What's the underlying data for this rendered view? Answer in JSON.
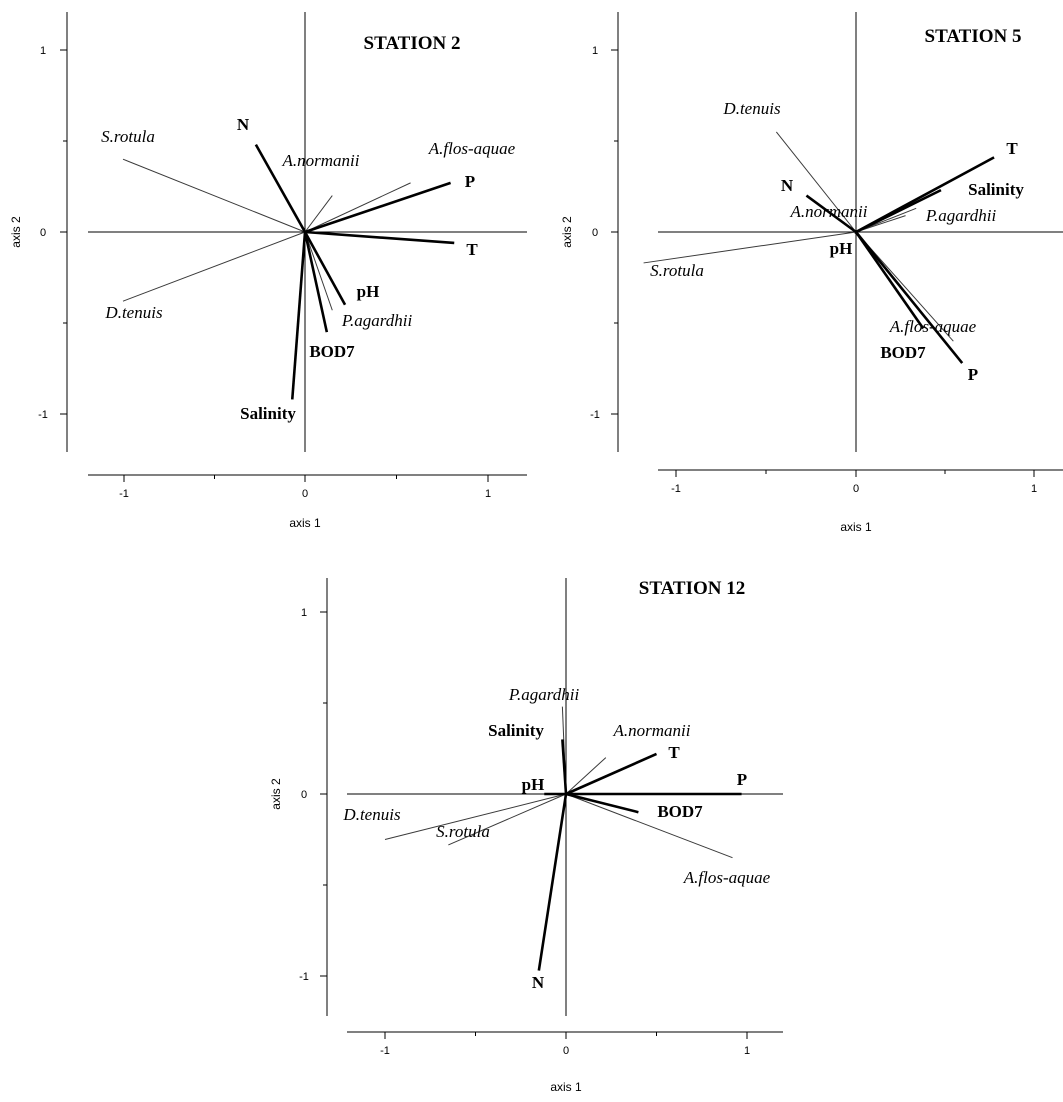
{
  "chart_data": [
    {
      "type": "scatter",
      "title": "STATION 2",
      "xlabel": "axis 1",
      "ylabel": "axis 2",
      "xlim": [
        -1.2,
        1.2
      ],
      "ylim": [
        -1.2,
        1.2
      ],
      "xticks": [
        "-1",
        "0",
        "1"
      ],
      "yticks": [
        "1",
        "0",
        "-1"
      ],
      "env_vectors": [
        {
          "name": "N",
          "x": -0.27,
          "y": 0.48
        },
        {
          "name": "P",
          "x": 0.8,
          "y": 0.27
        },
        {
          "name": "T",
          "x": 0.82,
          "y": -0.06
        },
        {
          "name": "pH",
          "x": 0.22,
          "y": -0.4
        },
        {
          "name": "BOD7",
          "x": 0.12,
          "y": -0.55
        },
        {
          "name": "Salinity",
          "x": -0.07,
          "y": -0.92
        }
      ],
      "species_vectors": [
        {
          "name": "S.rotula",
          "x": -1.0,
          "y": 0.4
        },
        {
          "name": "A.normanii",
          "x": 0.15,
          "y": 0.2
        },
        {
          "name": "A.flos-aquae",
          "x": 0.58,
          "y": 0.27
        },
        {
          "name": "D.tenuis",
          "x": -1.0,
          "y": -0.38
        },
        {
          "name": "P.agardhii",
          "x": 0.15,
          "y": -0.43
        }
      ]
    },
    {
      "type": "scatter",
      "title": "STATION 5",
      "xlabel": "axis 1",
      "ylabel": "axis 2",
      "xlim": [
        -1.2,
        1.2
      ],
      "ylim": [
        -1.2,
        1.2
      ],
      "xticks": [
        "-1",
        "0",
        "1"
      ],
      "yticks": [
        "1",
        "0",
        "-1"
      ],
      "env_vectors": [
        {
          "name": "T",
          "x": 0.78,
          "y": 0.41
        },
        {
          "name": "Salinity",
          "x": 0.48,
          "y": 0.23
        },
        {
          "name": "N",
          "x": -0.28,
          "y": 0.2
        },
        {
          "name": "pH",
          "x": 0.0,
          "y": -0.01
        },
        {
          "name": "BOD7",
          "x": 0.38,
          "y": -0.53
        },
        {
          "name": "P",
          "x": 0.6,
          "y": -0.72
        }
      ],
      "species_vectors": [
        {
          "name": "D.tenuis",
          "x": -0.45,
          "y": 0.55
        },
        {
          "name": "A.normanii",
          "x": 0.28,
          "y": 0.09
        },
        {
          "name": "P.agardhii",
          "x": 0.34,
          "y": 0.13
        },
        {
          "name": "S.rotula",
          "x": -1.2,
          "y": -0.17
        },
        {
          "name": "A.flos-aquae",
          "x": 0.55,
          "y": -0.6
        }
      ]
    },
    {
      "type": "scatter",
      "title": "STATION 12",
      "xlabel": "axis 1",
      "ylabel": "axis 2",
      "xlim": [
        -1.2,
        1.2
      ],
      "ylim": [
        -1.2,
        1.2
      ],
      "xticks": [
        "-1",
        "0",
        "1"
      ],
      "yticks": [
        "1",
        "0",
        "-1"
      ],
      "env_vectors": [
        {
          "name": "Salinity",
          "x": -0.02,
          "y": 0.3
        },
        {
          "name": "T",
          "x": 0.5,
          "y": 0.22
        },
        {
          "name": "P",
          "x": 0.97,
          "y": 0.0
        },
        {
          "name": "BOD7",
          "x": 0.4,
          "y": -0.1
        },
        {
          "name": "pH",
          "x": -0.12,
          "y": 0.0
        },
        {
          "name": "N",
          "x": -0.15,
          "y": -0.97
        }
      ],
      "species_vectors": [
        {
          "name": "P.agardhii",
          "x": -0.02,
          "y": 0.48
        },
        {
          "name": "A.normanii",
          "x": 0.22,
          "y": 0.2
        },
        {
          "name": "D.tenuis",
          "x": -1.0,
          "y": -0.25
        },
        {
          "name": "S.rotula",
          "x": -0.65,
          "y": -0.28
        },
        {
          "name": "A.flos-aquae",
          "x": 0.92,
          "y": -0.35
        }
      ]
    }
  ]
}
